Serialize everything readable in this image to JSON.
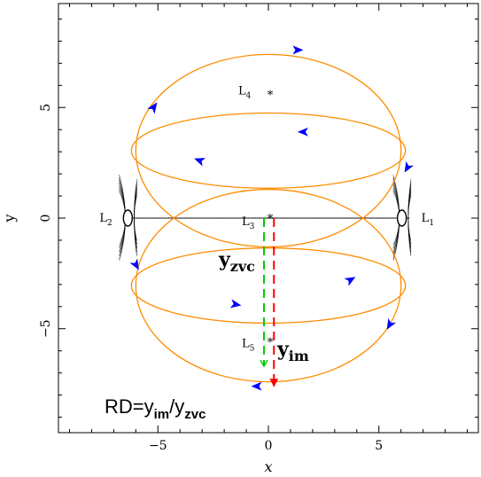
{
  "chart_data": {
    "type": "scatter",
    "xlabel": "x",
    "ylabel": "y",
    "xlim": [
      -9.5,
      9.5
    ],
    "ylim": [
      -9.7,
      9.7
    ],
    "xticks": [
      -5,
      0,
      5
    ],
    "yticks": [
      -5,
      0,
      5
    ],
    "grid": false,
    "points": [
      {
        "label": "L4",
        "x": 0.0,
        "y": 5.6
      },
      {
        "label": "L3",
        "x": 0.0,
        "y": 0.0
      },
      {
        "label": "L5",
        "x": 0.0,
        "y": -5.6
      },
      {
        "label": "L1",
        "x": 6.2,
        "y": 0.0
      },
      {
        "label": "L2",
        "x": -6.2,
        "y": 0.0
      }
    ],
    "zvc_curves": [
      {
        "center": [
          0,
          3.05
        ],
        "rx": 6.0,
        "ry": 4.35
      },
      {
        "center": [
          0,
          3.05
        ],
        "rx": 6.2,
        "ry": 1.7
      },
      {
        "center": [
          0,
          -3.05
        ],
        "rx": 6.0,
        "ry": 4.35
      },
      {
        "center": [
          0,
          -3.05
        ],
        "rx": 6.2,
        "ry": 1.7
      }
    ],
    "y_zvc": {
      "x": -0.2,
      "from": 0.0,
      "to": -6.7
    },
    "y_im": {
      "x": 0.25,
      "from": 0.0,
      "to": -7.6
    },
    "annotations": {
      "yzvc_base": "y",
      "yzvc_sub": "zvc",
      "yim_base": "y",
      "yim_sub": "im",
      "rd_prefix": "RD=y",
      "rd_sub1": "im",
      "rd_mid": "/y",
      "rd_sub2": "zvc"
    },
    "colors": {
      "orbit": "#000000",
      "zvc": "#ff8c00",
      "arrows": "#0000ff",
      "y_zvc": "#00cc00",
      "y_im": "#ff0000"
    }
  }
}
